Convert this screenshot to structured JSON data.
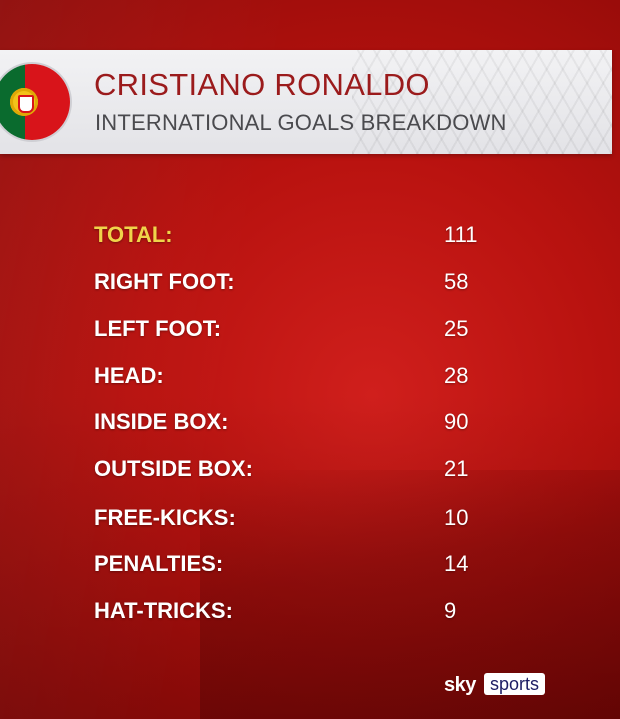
{
  "header": {
    "title": "CRISTIANO RONALDO",
    "subtitle": "INTERNATIONAL GOALS BREAKDOWN",
    "flag_icon": "portugal-flag-icon"
  },
  "stats": [
    {
      "label": "TOTAL:",
      "value": "111"
    },
    {
      "label": "RIGHT FOOT:",
      "value": "58"
    },
    {
      "label": "LEFT FOOT:",
      "value": "25"
    },
    {
      "label": "HEAD:",
      "value": "28"
    },
    {
      "label": "INSIDE BOX:",
      "value": "90"
    },
    {
      "label": "OUTSIDE BOX:",
      "value": "21"
    },
    {
      "label": "FREE-KICKS:",
      "value": "10"
    },
    {
      "label": "PENALTIES:",
      "value": "14"
    },
    {
      "label": "HAT-TRICKS:",
      "value": "9"
    }
  ],
  "branding": {
    "sky": "sky",
    "sports": "sports"
  },
  "colors": {
    "background": "#c01512",
    "title": "#9b1b1c",
    "total_label": "#f0d44a",
    "text": "#ffffff"
  }
}
